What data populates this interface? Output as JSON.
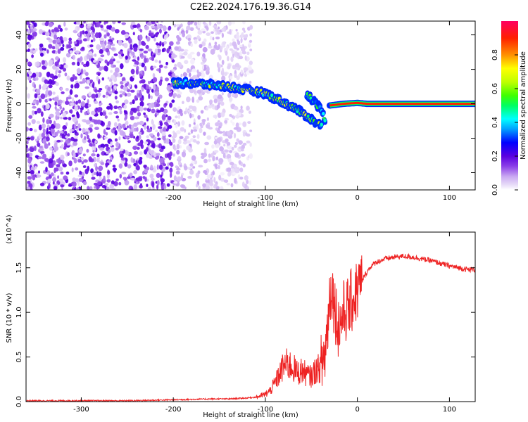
{
  "figure_title": "C2E2.2024.176.19.36.G14",
  "chart_data": [
    {
      "type": "heatmap",
      "title": "",
      "xlabel": "Height of straight line (km)",
      "ylabel": "Frequency (Hz)",
      "xlim": [
        -360,
        128
      ],
      "ylim": [
        -50,
        48
      ],
      "xticks": [
        -300,
        -200,
        -100,
        0,
        100
      ],
      "yticks": [
        -40,
        -20,
        0,
        20,
        40
      ],
      "colorbar": {
        "label": "Normalized spectral amplitude",
        "range": [
          0,
          1
        ],
        "ticks": [
          "0.0",
          "0.2",
          "0.4",
          "0.6",
          "0.8"
        ],
        "colormap": [
          "#ffffff",
          "#e8dcf8",
          "#c9a8f2",
          "#8b3fe8",
          "#5a00e0",
          "#0000ff",
          "#00a0ff",
          "#00ffff",
          "#00ff60",
          "#40ff00",
          "#c0ff00",
          "#ffff00",
          "#ff9000",
          "#ff2000",
          "#ff0060"
        ]
      },
      "features": [
        {
          "name": "diffuse noise",
          "x_range": [
            -360,
            -200
          ],
          "freq_range": [
            -50,
            48
          ],
          "amplitude": 0.2
        },
        {
          "name": "fading noise",
          "x_range": [
            -200,
            -115
          ],
          "freq_range": [
            -50,
            48
          ],
          "amplitude": 0.1
        },
        {
          "name": "signal track",
          "points": [
            [
              -200,
              12
            ],
            [
              -180,
              12
            ],
            [
              -160,
              11
            ],
            [
              -140,
              10
            ],
            [
              -120,
              8
            ],
            [
              -100,
              6
            ],
            [
              -85,
              2
            ],
            [
              -70,
              -2
            ],
            [
              -55,
              -7
            ],
            [
              -45,
              -11
            ],
            [
              -38,
              -13
            ]
          ],
          "amplitude": 0.55
        },
        {
          "name": "upper branch",
          "points": [
            [
              -55,
              6
            ],
            [
              -48,
              2
            ],
            [
              -40,
              -3
            ],
            [
              -35,
              -9
            ]
          ],
          "amplitude": 0.45
        },
        {
          "name": "steady tone",
          "points": [
            [
              -30,
              -1
            ],
            [
              -15,
              0
            ],
            [
              0,
              0.5
            ],
            [
              10,
              0
            ],
            [
              128,
              0
            ]
          ],
          "amplitude": 0.9
        }
      ]
    },
    {
      "type": "line",
      "title": "",
      "xlabel": "Height of straight line (km)",
      "ylabel": "SNR (10 * v/v)",
      "yscale_label": "(x10^4)",
      "xlim": [
        -360,
        128
      ],
      "ylim": [
        0,
        1.9
      ],
      "xticks": [
        -300,
        -200,
        -100,
        0,
        100
      ],
      "yticks": [
        "0.0",
        "0.5",
        "1.0",
        "1.5"
      ],
      "series": [
        {
          "color": "#ee2222",
          "x": [
            -360,
            -300,
            -250,
            -200,
            -160,
            -140,
            -120,
            -110,
            -100,
            -95,
            -90,
            -85,
            -80,
            -75,
            -70,
            -65,
            -60,
            -55,
            -50,
            -45,
            -40,
            -35,
            -32,
            -30,
            -28,
            -25,
            -22,
            -20,
            -18,
            -15,
            -10,
            -5,
            0,
            5,
            10,
            15,
            20,
            30,
            40,
            50,
            60,
            70,
            80,
            90,
            100,
            110,
            120,
            128
          ],
          "y": [
            0.01,
            0.01,
            0.01,
            0.02,
            0.03,
            0.03,
            0.04,
            0.05,
            0.08,
            0.12,
            0.2,
            0.3,
            0.4,
            0.42,
            0.38,
            0.32,
            0.35,
            0.3,
            0.28,
            0.36,
            0.38,
            0.55,
            0.9,
            1.2,
            1.3,
            1.1,
            0.9,
            0.85,
            0.9,
            1.0,
            1.05,
            1.15,
            1.25,
            1.35,
            1.45,
            1.52,
            1.56,
            1.6,
            1.62,
            1.63,
            1.62,
            1.6,
            1.58,
            1.55,
            1.52,
            1.5,
            1.48,
            1.48
          ]
        }
      ]
    }
  ]
}
